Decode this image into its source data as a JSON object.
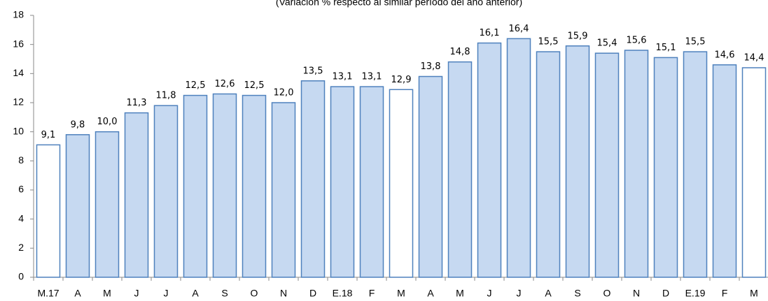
{
  "chart_data": {
    "type": "bar",
    "subtitle": "(Variación % respecto al similar período del año anterior)",
    "categories": [
      "M.17",
      "A",
      "M",
      "J",
      "J",
      "A",
      "S",
      "O",
      "N",
      "D",
      "E.18",
      "F",
      "M",
      "A",
      "M",
      "J",
      "J",
      "A",
      "S",
      "O",
      "N",
      "D",
      "E.19",
      "F",
      "M"
    ],
    "values": [
      9.1,
      9.8,
      10.0,
      11.3,
      11.8,
      12.5,
      12.6,
      12.5,
      12.0,
      13.5,
      13.1,
      13.1,
      12.9,
      13.8,
      14.8,
      16.1,
      16.4,
      15.5,
      15.9,
      15.4,
      15.6,
      15.1,
      15.5,
      14.6,
      14.4
    ],
    "value_labels": [
      "9,1",
      "9,8",
      "10,0",
      "11,3",
      "11,8",
      "12,5",
      "12,6",
      "12,5",
      "12,0",
      "13,5",
      "13,1",
      "13,1",
      "12,9",
      "13,8",
      "14,8",
      "16,1",
      "16,4",
      "15,5",
      "15,9",
      "15,4",
      "15,6",
      "15,1",
      "15,5",
      "14,6",
      "14,4"
    ],
    "colors": [
      "#ffffff",
      "#c6d9f1",
      "#c6d9f1",
      "#c6d9f1",
      "#c6d9f1",
      "#c6d9f1",
      "#c6d9f1",
      "#c6d9f1",
      "#c6d9f1",
      "#c6d9f1",
      "#c6d9f1",
      "#c6d9f1",
      "#ffffff",
      "#c6d9f1",
      "#c6d9f1",
      "#c6d9f1",
      "#c6d9f1",
      "#c6d9f1",
      "#c6d9f1",
      "#c6d9f1",
      "#c6d9f1",
      "#c6d9f1",
      "#c6d9f1",
      "#c6d9f1",
      "#ffffff"
    ],
    "edge_color": "#4f81bd",
    "ylim": [
      0,
      18
    ],
    "yticks": [
      0,
      2,
      4,
      6,
      8,
      10,
      12,
      14,
      16,
      18
    ]
  }
}
